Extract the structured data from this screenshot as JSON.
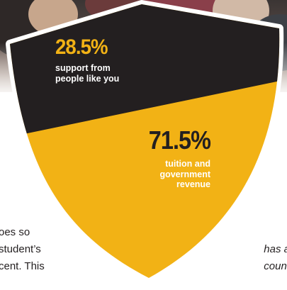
{
  "stats": {
    "top": {
      "percent": "28.5%",
      "caption_line1": "support from",
      "caption_line2": "people like you"
    },
    "bottom": {
      "percent": "71.5%",
      "caption_line1": "tuition and",
      "caption_line2": "government",
      "caption_line3": "revenue"
    }
  },
  "body_text_left": [
    "oes so",
    "student’s",
    "cent. This"
  ],
  "body_text_right": [
    "f",
    "has a",
    "count"
  ],
  "colors": {
    "gold": "#f2b215",
    "dark": "#231f20",
    "white": "#ffffff"
  }
}
